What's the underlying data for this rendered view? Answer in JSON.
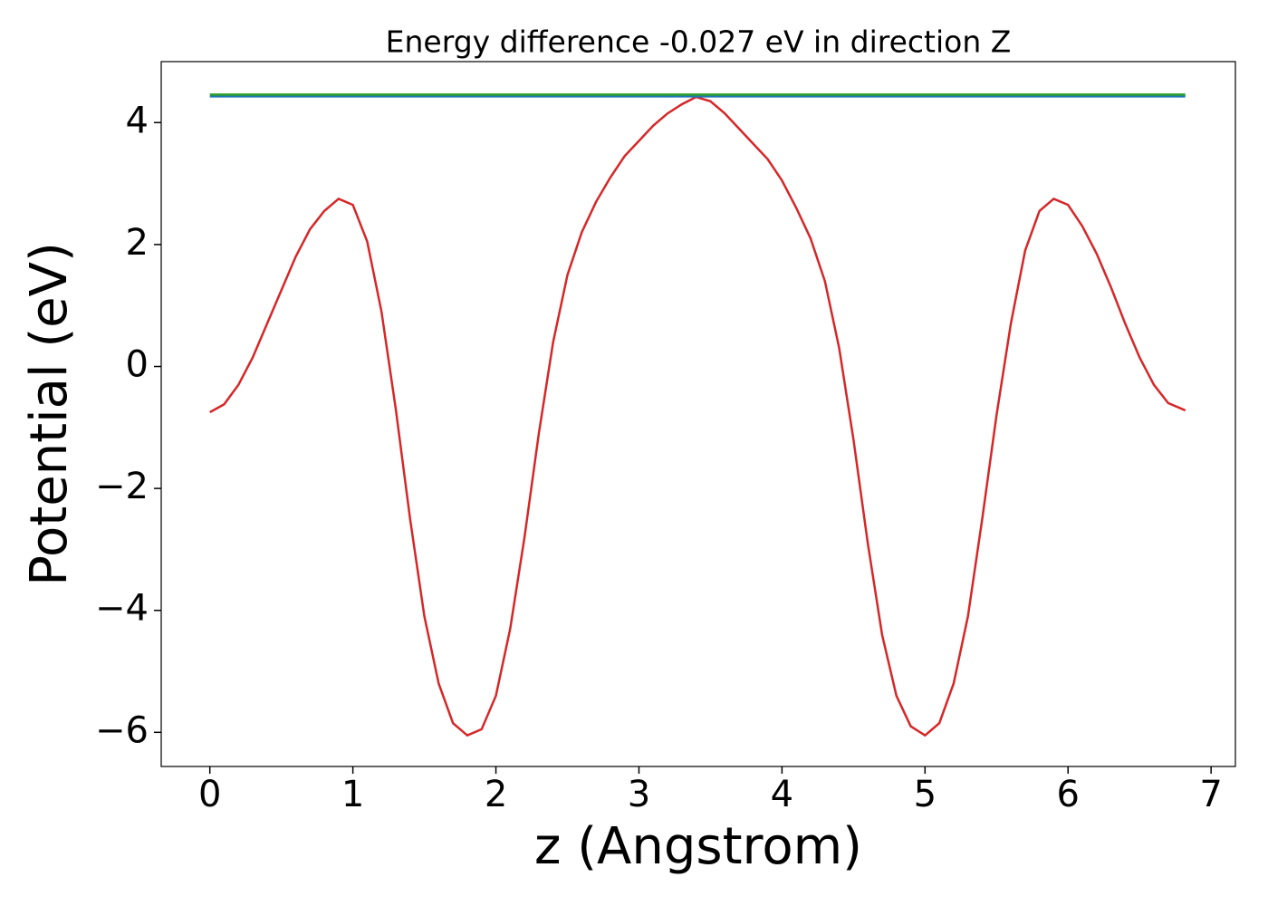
{
  "chart_data": {
    "type": "line",
    "title": "Energy difference -0.027 eV in direction Z",
    "x_label": "z (Angstrom)",
    "y_label": "Potential (eV)",
    "xlim": [
      -0.34,
      7.17
    ],
    "ylim": [
      -6.56,
      5.0
    ],
    "xticks": [
      0,
      1,
      2,
      3,
      4,
      5,
      6,
      7
    ],
    "yticks": [
      {
        "value": -6,
        "label": "−6"
      },
      {
        "value": -4,
        "label": "−4"
      },
      {
        "value": -2,
        "label": "−2"
      },
      0,
      2,
      4
    ],
    "series": [
      {
        "color": "#d62728",
        "x": [
          0,
          0.1,
          0.2,
          0.3,
          0.4,
          0.5,
          0.6,
          0.7,
          0.8,
          0.9,
          1.0,
          1.1,
          1.2,
          1.3,
          1.4,
          1.5,
          1.6,
          1.7,
          1.8,
          1.9,
          2.0,
          2.1,
          2.2,
          2.3,
          2.4,
          2.5,
          2.6,
          2.7,
          2.8,
          2.9,
          3.0,
          3.1,
          3.2,
          3.3,
          3.4,
          3.5,
          3.6,
          3.7,
          3.8,
          3.9,
          4.0,
          4.1,
          4.2,
          4.3,
          4.4,
          4.5,
          4.6,
          4.7,
          4.8,
          4.9,
          5.0,
          5.1,
          5.2,
          5.3,
          5.4,
          5.5,
          5.6,
          5.7,
          5.8,
          5.9,
          6.0,
          6.1,
          6.2,
          6.3,
          6.4,
          6.5,
          6.6,
          6.7,
          6.82
        ],
        "values": [
          -0.75,
          -0.62,
          -0.3,
          0.15,
          0.7,
          1.25,
          1.8,
          2.25,
          2.55,
          2.75,
          2.65,
          2.05,
          0.9,
          -0.7,
          -2.5,
          -4.1,
          -5.2,
          -5.85,
          -6.05,
          -5.95,
          -5.4,
          -4.3,
          -2.8,
          -1.1,
          0.4,
          1.5,
          2.2,
          2.7,
          3.1,
          3.45,
          3.7,
          3.95,
          4.15,
          4.3,
          4.42,
          4.35,
          4.15,
          3.9,
          3.65,
          3.4,
          3.05,
          2.6,
          2.1,
          1.4,
          0.3,
          -1.2,
          -2.9,
          -4.4,
          -5.4,
          -5.9,
          -6.05,
          -5.85,
          -5.2,
          -4.1,
          -2.5,
          -0.8,
          0.7,
          1.9,
          2.55,
          2.75,
          2.65,
          2.3,
          1.85,
          1.3,
          0.7,
          0.15,
          -0.3,
          -0.6,
          -0.72
        ]
      },
      {
        "color": "#1f77b4",
        "x": [
          0,
          6.82
        ],
        "values": [
          4.43,
          4.43
        ]
      },
      {
        "color": "#2ca02c",
        "x": [
          0,
          6.82
        ],
        "values": [
          4.46,
          4.46
        ]
      }
    ]
  }
}
